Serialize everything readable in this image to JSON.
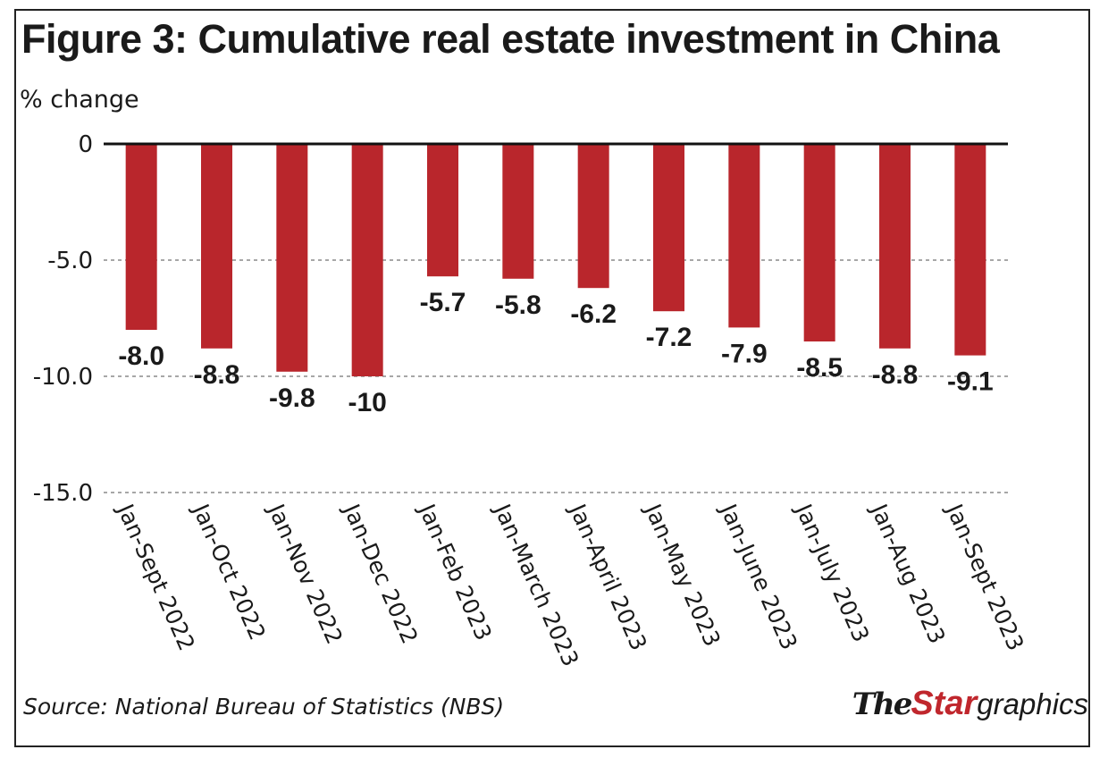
{
  "chart_data": {
    "type": "bar",
    "title": "Figure 3: Cumulative real estate investment in China",
    "ylabel": "% change",
    "xlabel": "",
    "categories": [
      "Jan-Sept 2022",
      "Jan-Oct 2022",
      "Jan-Nov 2022",
      "Jan-Dec 2022",
      "Jan-Feb 2023",
      "Jan-March 2023",
      "Jan-April 2023",
      "Jan-May 2023",
      "Jan-June 2023",
      "Jan-July 2023",
      "Jan-Aug 2023",
      "Jan-Sept 2023"
    ],
    "values": [
      -8.0,
      -8.8,
      -9.8,
      -10,
      -5.7,
      -5.8,
      -6.2,
      -7.2,
      -7.9,
      -8.5,
      -8.8,
      -9.1
    ],
    "value_labels": [
      "-8.0",
      "-8.8",
      "-9.8",
      "-10",
      "-5.7",
      "-5.8",
      "-6.2",
      "-7.2",
      "-7.9",
      "-8.5",
      "-8.8",
      "-9.1"
    ],
    "ylim": [
      -15,
      0
    ],
    "yticks": [
      0,
      -5.0,
      -10.0,
      -15.0
    ],
    "ytick_labels": [
      "0",
      "-5.0",
      "-10.0",
      "-15.0"
    ],
    "grid": true,
    "bar_color": "#b9262c",
    "source": "Source: National Bureau of Statistics (NBS)"
  },
  "branding": {
    "the": "The",
    "star": "Star",
    "graphics": "graphics",
    "accent_color": "#c0272d"
  }
}
